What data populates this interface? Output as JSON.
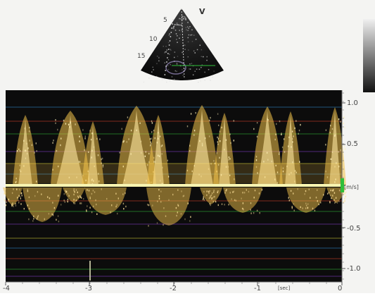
{
  "sector_view": {
    "marker_label": "V",
    "depth_labels": [
      "5",
      "10",
      "15"
    ]
  },
  "doppler": {
    "y_axis": {
      "unit_label": "[m/s]",
      "tick_labels": [
        "1.0",
        "0.5",
        "-0.5",
        "-1.0"
      ]
    },
    "x_axis": {
      "unit_label": "[sec]",
      "tick_labels": [
        "-4",
        "-3",
        "-2",
        "-1",
        "0"
      ]
    },
    "gridline_colors": [
      "#2f8fd8",
      "#e0442a",
      "#2fbf3a",
      "#8a3fd0",
      "#d9d43a"
    ],
    "trace_color": "#f2c24a",
    "baseline_color": "#f8f4b0"
  },
  "colorbar": {
    "gradient_top": "#f0f0f0",
    "gradient_bottom": "#111111"
  }
}
